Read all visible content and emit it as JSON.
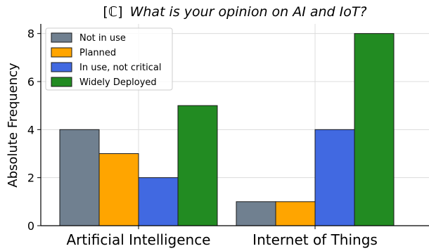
{
  "chart_data": {
    "type": "bar",
    "title_prefix": "[ℂ]",
    "title": "What is your opinion on AI and IoT?",
    "xlabel": "",
    "ylabel": "Absolute Frequency",
    "categories": [
      "Artificial Intelligence",
      "Internet of Things"
    ],
    "series": [
      {
        "name": "Not in use",
        "color": "#708090",
        "values": [
          4,
          1
        ]
      },
      {
        "name": "Planned",
        "color": "#FFA500",
        "values": [
          3,
          1
        ]
      },
      {
        "name": "In use, not critical",
        "color": "#4169E1",
        "values": [
          2,
          4
        ]
      },
      {
        "name": "Widely Deployed",
        "color": "#228B22",
        "values": [
          5,
          8
        ]
      }
    ],
    "ylim": [
      0,
      8.4
    ],
    "yticks": [
      0,
      2,
      4,
      6,
      8
    ],
    "grid": true,
    "legend_position": "upper-left"
  }
}
